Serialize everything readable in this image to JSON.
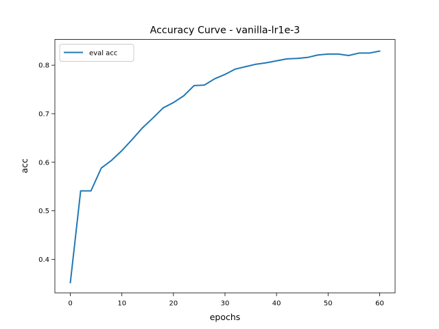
{
  "chart_data": {
    "type": "line",
    "title": "Accuracy Curve - vanilla-lr1e-3",
    "xlabel": "epochs",
    "ylabel": "acc",
    "xlim": [
      -3.0,
      63.0
    ],
    "ylim": [
      0.331,
      0.853
    ],
    "xticks": [
      0,
      10,
      20,
      30,
      40,
      50,
      60
    ],
    "yticks": [
      0.4,
      0.5,
      0.6,
      0.7,
      0.8
    ],
    "ytick_labels": [
      "0.4",
      "0.5",
      "0.6",
      "0.7",
      "0.8"
    ],
    "grid": false,
    "legend_position": "upper left",
    "series": [
      {
        "name": "eval acc",
        "color": "#1f77b4",
        "x": [
          0,
          2,
          4,
          6,
          8,
          10,
          12,
          14,
          16,
          18,
          20,
          22,
          24,
          26,
          28,
          30,
          32,
          34,
          36,
          38,
          40,
          42,
          44,
          46,
          48,
          50,
          52,
          54,
          56,
          58,
          60
        ],
        "y": [
          0.352,
          0.541,
          0.541,
          0.588,
          0.604,
          0.624,
          0.647,
          0.671,
          0.691,
          0.712,
          0.723,
          0.737,
          0.758,
          0.759,
          0.772,
          0.781,
          0.792,
          0.797,
          0.802,
          0.805,
          0.809,
          0.813,
          0.814,
          0.816,
          0.821,
          0.823,
          0.823,
          0.82,
          0.825,
          0.825,
          0.829
        ]
      }
    ]
  }
}
